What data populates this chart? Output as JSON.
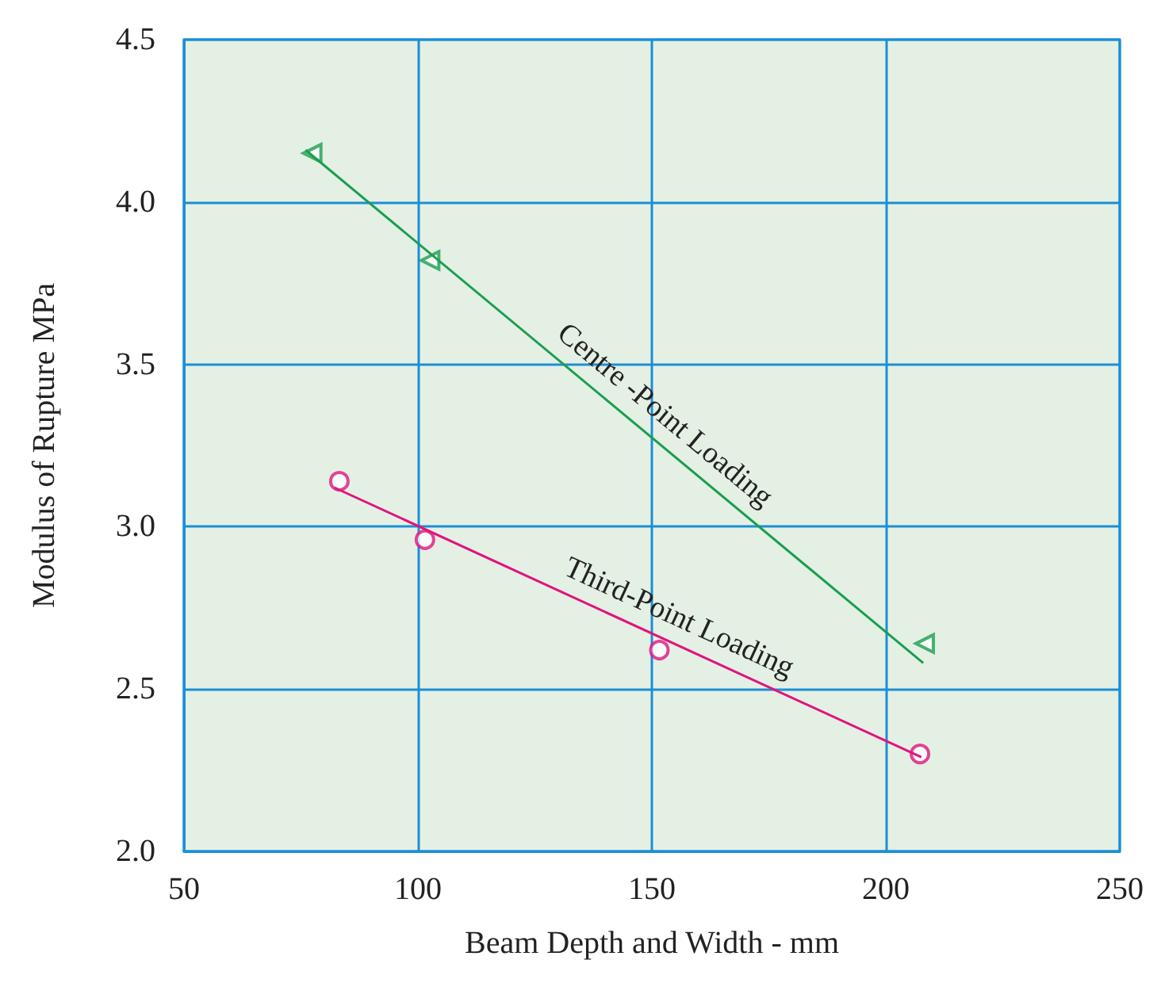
{
  "chart_data": {
    "type": "scatter",
    "xlabel": "Beam Depth and Width - mm",
    "ylabel": "Modulus of Rupture MPa",
    "xlim": [
      50,
      250
    ],
    "xticks": [
      50,
      100,
      150,
      200,
      250
    ],
    "ylim": [
      2.0,
      4.5
    ],
    "yticks": [
      {
        "value": 2.0,
        "label": "2.0"
      },
      {
        "value": 2.5,
        "label": "2.5"
      },
      {
        "value": 3.0,
        "label": "3.0"
      },
      {
        "value": 3.5,
        "label": "3.5"
      },
      {
        "value": 4.0,
        "label": "4.0"
      },
      {
        "value": 4.5,
        "label": "4.5"
      }
    ],
    "grid": true,
    "legend": false,
    "series": [
      {
        "color": "#1a9e50",
        "marker": "triangle",
        "x": [
          77.4,
          102.6,
          208.3
        ],
        "values": [
          4.15,
          3.82,
          2.64
        ]
      },
      {
        "type": "line",
        "name": "Centre -Point Loading",
        "color": "#1a9e50",
        "marker": "none",
        "line_style": "solid",
        "x": [
          76,
          208
        ],
        "values": [
          4.16,
          2.58
        ]
      },
      {
        "color": "#e0147f",
        "marker": "circle",
        "x": [
          83.2,
          101.5,
          151.6,
          207.3
        ],
        "values": [
          3.14,
          2.96,
          2.62,
          2.3
        ]
      },
      {
        "type": "line",
        "name": "Third-Point Loading",
        "color": "#e0147f",
        "marker": "none",
        "line_style": "solid",
        "x": [
          82.2,
          207.6
        ],
        "values": [
          3.12,
          2.29
        ]
      }
    ]
  }
}
